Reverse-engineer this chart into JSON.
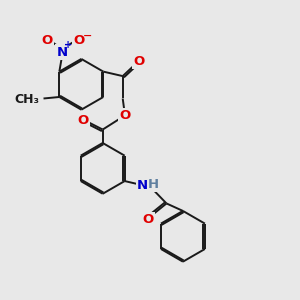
{
  "bg_color": "#e8e8e8",
  "bond_color": "#1a1a1a",
  "bond_width": 1.4,
  "dbo": 0.06,
  "atom_colors": {
    "O": "#e00000",
    "N": "#0000cc",
    "C": "#1a1a1a",
    "H": "#6080a0"
  },
  "fs": 9.5,
  "fs_small": 7.0
}
